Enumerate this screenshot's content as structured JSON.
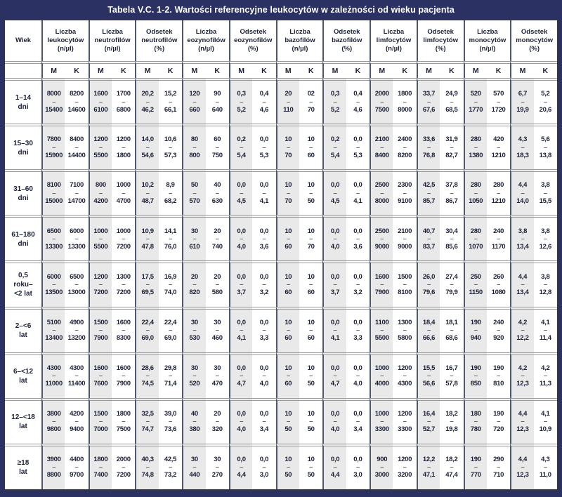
{
  "title": "Tabela V.C. 1-2. Wartości referencyjne leukocytów w zależności od wieku pacjenta",
  "colors": {
    "frame_navy": "#2b3162",
    "m_column_bg": "#e9e9e9",
    "row_separator": "#9a9a9a",
    "group_separator": "#50566c",
    "text": "#1b2036",
    "title_text": "#ffffff"
  },
  "table": {
    "age_header": "Wiek",
    "dash": "–",
    "sub": [
      "M",
      "K"
    ],
    "groups": [
      "Liczba\nleukocytów\n(n/µl)",
      "Liczba\nneutrofilów\n(n/µl)",
      "Odsetek\nneutrofilów\n(%)",
      "Liczba\neozynofilów\n(n/µl)",
      "Odsetek\neozynofilów\n(%)",
      "Liczba\nbazofilów\n(n/µl)",
      "Odsetek\nbazofilów\n(%)",
      "Liczba\nlimfocytów\n(n/µl)",
      "Odsetek\nlimfocytów\n(%)",
      "Liczba\nmonocytów\n(n/µl)",
      "Odsetek\nmonocytów\n(%)"
    ],
    "rows": [
      {
        "age": "1–14\ndni",
        "values": [
          [
            "8000",
            "15400"
          ],
          [
            "8200",
            "14600"
          ],
          [
            "1600",
            "6100"
          ],
          [
            "1700",
            "6800"
          ],
          [
            "20,2",
            "46,2"
          ],
          [
            "15,2",
            "66,1"
          ],
          [
            "120",
            "660"
          ],
          [
            "90",
            "640"
          ],
          [
            "0,3",
            "5,2"
          ],
          [
            "0,4",
            "4,6"
          ],
          [
            "20",
            "110"
          ],
          [
            "02",
            "70"
          ],
          [
            "0,3",
            "5,2"
          ],
          [
            "0,4",
            "4,6"
          ],
          [
            "2000",
            "7500"
          ],
          [
            "1800",
            "8000"
          ],
          [
            "33,7",
            "67,6"
          ],
          [
            "24,9",
            "68,5"
          ],
          [
            "520",
            "1770"
          ],
          [
            "570",
            "1720"
          ],
          [
            "6,7",
            "19,9"
          ],
          [
            "5,2",
            "20,6"
          ]
        ]
      },
      {
        "age": "15–30\ndni",
        "values": [
          [
            "7800",
            "15900"
          ],
          [
            "8400",
            "14400"
          ],
          [
            "1200",
            "5500"
          ],
          [
            "1200",
            "1800"
          ],
          [
            "14,0",
            "54,6"
          ],
          [
            "10,6",
            "57,3"
          ],
          [
            "80",
            "800"
          ],
          [
            "60",
            "750"
          ],
          [
            "0,2",
            "5,4"
          ],
          [
            "0,0",
            "5,3"
          ],
          [
            "10",
            "70"
          ],
          [
            "10",
            "60"
          ],
          [
            "0,2",
            "5,4"
          ],
          [
            "0,0",
            "5,3"
          ],
          [
            "2100",
            "8400"
          ],
          [
            "2400",
            "8200"
          ],
          [
            "33,6",
            "76,8"
          ],
          [
            "31,9",
            "82,7"
          ],
          [
            "280",
            "1380"
          ],
          [
            "420",
            "1210"
          ],
          [
            "4,3",
            "18,3"
          ],
          [
            "5,6",
            "13,8"
          ]
        ]
      },
      {
        "age": "31–60\ndni",
        "values": [
          [
            "8100",
            "15000"
          ],
          [
            "7100",
            "14700"
          ],
          [
            "800",
            "4200"
          ],
          [
            "1000",
            "4700"
          ],
          [
            "10,2",
            "48,7"
          ],
          [
            "8,9",
            "68,2"
          ],
          [
            "50",
            "570"
          ],
          [
            "40",
            "630"
          ],
          [
            "0,0",
            "4,5"
          ],
          [
            "0,0",
            "4,1"
          ],
          [
            "10",
            "70"
          ],
          [
            "10",
            "50"
          ],
          [
            "0,0",
            "4,5"
          ],
          [
            "0,0",
            "4,1"
          ],
          [
            "2500",
            "8000"
          ],
          [
            "2300",
            "9100"
          ],
          [
            "42,5",
            "85,7"
          ],
          [
            "37,8",
            "86,7"
          ],
          [
            "280",
            "1050"
          ],
          [
            "280",
            "1210"
          ],
          [
            "4,4",
            "14,0"
          ],
          [
            "3,8",
            "15,5"
          ]
        ]
      },
      {
        "age": "61–180\ndni",
        "values": [
          [
            "6500",
            "13300"
          ],
          [
            "6000",
            "13300"
          ],
          [
            "1000",
            "5500"
          ],
          [
            "1000",
            "7200"
          ],
          [
            "10,9",
            "47,8"
          ],
          [
            "14,1",
            "76,0"
          ],
          [
            "30",
            "610"
          ],
          [
            "20",
            "740"
          ],
          [
            "0,0",
            "4,0"
          ],
          [
            "0,0",
            "3,6"
          ],
          [
            "10",
            "60"
          ],
          [
            "10",
            "70"
          ],
          [
            "0,0",
            "4,0"
          ],
          [
            "0,0",
            "3,6"
          ],
          [
            "2500",
            "9000"
          ],
          [
            "2100",
            "9000"
          ],
          [
            "40,7",
            "83,7"
          ],
          [
            "30,4",
            "85,6"
          ],
          [
            "280",
            "1070"
          ],
          [
            "240",
            "1170"
          ],
          [
            "3,8",
            "13,4"
          ],
          [
            "3,8",
            "12,6"
          ]
        ]
      },
      {
        "age": "0,5\nroku–\n<2 lat",
        "values": [
          [
            "6000",
            "13500"
          ],
          [
            "6500",
            "13000"
          ],
          [
            "1200",
            "7200"
          ],
          [
            "1300",
            "7200"
          ],
          [
            "17,5",
            "69,5"
          ],
          [
            "16,9",
            "74,0"
          ],
          [
            "20",
            "820"
          ],
          [
            "20",
            "580"
          ],
          [
            "0,0",
            "3,7"
          ],
          [
            "0,0",
            "3,2"
          ],
          [
            "10",
            "60"
          ],
          [
            "10",
            "60"
          ],
          [
            "0,0",
            "3,7"
          ],
          [
            "0,0",
            "3,2"
          ],
          [
            "1600",
            "7900"
          ],
          [
            "1500",
            "8100"
          ],
          [
            "26,0",
            "79,6"
          ],
          [
            "27,4",
            "79,9"
          ],
          [
            "250",
            "1150"
          ],
          [
            "260",
            "1080"
          ],
          [
            "4,4",
            "13,4"
          ],
          [
            "3,8",
            "12,8"
          ]
        ]
      },
      {
        "age": "2–<6\nlat",
        "values": [
          [
            "5100",
            "13400"
          ],
          [
            "4900",
            "13200"
          ],
          [
            "1500",
            "7900"
          ],
          [
            "1600",
            "8300"
          ],
          [
            "22,4",
            "69,0"
          ],
          [
            "22,4",
            "69,0"
          ],
          [
            "30",
            "530"
          ],
          [
            "30",
            "460"
          ],
          [
            "0,0",
            "4,1"
          ],
          [
            "0,0",
            "3,3"
          ],
          [
            "10",
            "60"
          ],
          [
            "10",
            "60"
          ],
          [
            "0,0",
            "4,1"
          ],
          [
            "0,0",
            "3,3"
          ],
          [
            "1100",
            "5500"
          ],
          [
            "1300",
            "5800"
          ],
          [
            "18,4",
            "66,6"
          ],
          [
            "18,1",
            "68,6"
          ],
          [
            "190",
            "940"
          ],
          [
            "240",
            "920"
          ],
          [
            "4,2",
            "12,2"
          ],
          [
            "4,1",
            "11,4"
          ]
        ]
      },
      {
        "age": "6–<12\nlat",
        "values": [
          [
            "4300",
            "11000"
          ],
          [
            "4300",
            "11400"
          ],
          [
            "1600",
            "7600"
          ],
          [
            "1600",
            "7900"
          ],
          [
            "28,6",
            "74,5"
          ],
          [
            "29,8",
            "71,4"
          ],
          [
            "30",
            "520"
          ],
          [
            "30",
            "470"
          ],
          [
            "0,0",
            "4,7"
          ],
          [
            "0,0",
            "4,0"
          ],
          [
            "10",
            "60"
          ],
          [
            "10",
            "50"
          ],
          [
            "0,0",
            "4,7"
          ],
          [
            "0,0",
            "4,0"
          ],
          [
            "1000",
            "4000"
          ],
          [
            "1200",
            "4300"
          ],
          [
            "15,5",
            "56,6"
          ],
          [
            "16,7",
            "57,8"
          ],
          [
            "190",
            "850"
          ],
          [
            "190",
            "810"
          ],
          [
            "4,2",
            "12,3"
          ],
          [
            "4,2",
            "11,3"
          ]
        ]
      },
      {
        "age": "12–<18\nlat",
        "values": [
          [
            "3800",
            "9800"
          ],
          [
            "4200",
            "9400"
          ],
          [
            "1500",
            "7000"
          ],
          [
            "1800",
            "7500"
          ],
          [
            "32,5",
            "74,7"
          ],
          [
            "39,0",
            "73,6"
          ],
          [
            "40",
            "380"
          ],
          [
            "20",
            "320"
          ],
          [
            "0,0",
            "4,0"
          ],
          [
            "0,0",
            "3,4"
          ],
          [
            "10",
            "50"
          ],
          [
            "10",
            "50"
          ],
          [
            "0,0",
            "4,0"
          ],
          [
            "0,0",
            "3,4"
          ],
          [
            "1000",
            "3300"
          ],
          [
            "1200",
            "3300"
          ],
          [
            "16,4",
            "52,7"
          ],
          [
            "18,2",
            "19,8"
          ],
          [
            "180",
            "780"
          ],
          [
            "190",
            "720"
          ],
          [
            "4,4",
            "12,3"
          ],
          [
            "4,1",
            "10,9"
          ]
        ]
      },
      {
        "age": "≥18\nlat",
        "values": [
          [
            "3900",
            "8800"
          ],
          [
            "4400",
            "9700"
          ],
          [
            "1800",
            "7400"
          ],
          [
            "2000",
            "7200"
          ],
          [
            "40,3",
            "74,8"
          ],
          [
            "42,5",
            "73,2"
          ],
          [
            "30",
            "440"
          ],
          [
            "30",
            "270"
          ],
          [
            "0,0",
            "4,4"
          ],
          [
            "0,0",
            "3,0"
          ],
          [
            "10",
            "50"
          ],
          [
            "10",
            "50"
          ],
          [
            "0,0",
            "4,4"
          ],
          [
            "0,0",
            "3,0"
          ],
          [
            "900",
            "3000"
          ],
          [
            "1200",
            "3200"
          ],
          [
            "12,2",
            "47,1"
          ],
          [
            "18,2",
            "47,4"
          ],
          [
            "190",
            "770"
          ],
          [
            "290",
            "710"
          ],
          [
            "4,4",
            "12,3"
          ],
          [
            "4,3",
            "11,0"
          ]
        ]
      }
    ]
  }
}
